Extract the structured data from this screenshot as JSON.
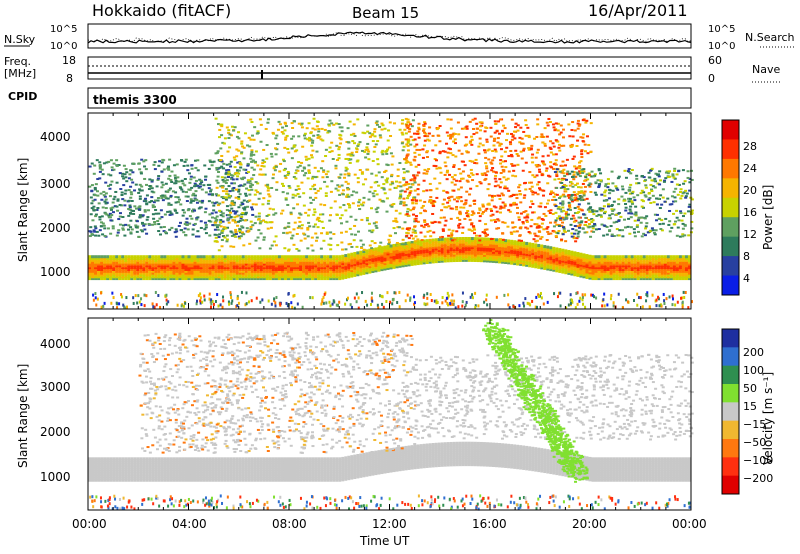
{
  "header": {
    "title": "Hokkaido (fitACF)",
    "beam": "Beam 15",
    "date": "16/Apr/2011"
  },
  "top_panel": {
    "left_label": "N.Sky",
    "right_label": "N.Search",
    "ticks_left": [
      "10^5",
      "10^0"
    ],
    "ticks_right": [
      "10^5",
      "10^0"
    ]
  },
  "freq_panel": {
    "left_label_1": "Freq.",
    "left_label_2": "[MHz]",
    "ticks_left": [
      "18",
      "8"
    ],
    "ticks_right": [
      "60",
      "0"
    ],
    "right_label": "Nave"
  },
  "cpid": {
    "label": "CPID",
    "value": "themis 3300"
  },
  "axes": {
    "ylabel": "Slant Range [km]",
    "xlabel": "Time UT",
    "y_ticks": [
      "4000",
      "3000",
      "2000",
      "1000"
    ],
    "x_ticks": [
      "00:00",
      "04:00",
      "08:00",
      "12:00",
      "16:00",
      "20:00",
      "00:00"
    ]
  },
  "power_colorbar": {
    "label": "Power [dB]",
    "ticks": [
      "28",
      "24",
      "20",
      "16",
      "12",
      "8",
      "4"
    ],
    "colors": [
      "#e00000",
      "#ff3000",
      "#ff7800",
      "#f5b400",
      "#c8d200",
      "#5fa060",
      "#2e7b5c",
      "#2840a0",
      "#0a1ee6"
    ]
  },
  "velocity_colorbar": {
    "label": "Velocity [m s⁻¹]",
    "ticks": [
      "200",
      "100",
      "50",
      "15",
      "−15",
      "−50",
      "−100",
      "−200"
    ],
    "colors": [
      "#1e2fa0",
      "#2f6fd0",
      "#2f8f50",
      "#80e030",
      "#c8c8c8",
      "#f0b830",
      "#ff7810",
      "#ff3010",
      "#e00000"
    ]
  },
  "chart_data": {
    "type": "heatmap",
    "xlabel": "Time UT",
    "ylabel": "Slant Range [km]",
    "xlim": [
      0,
      24
    ],
    "ylim": [
      200,
      4500
    ],
    "panels": [
      {
        "quantity": "Power [dB]",
        "color_range": [
          0,
          32
        ],
        "features": [
          {
            "kind": "band",
            "t": [
              0,
              24
            ],
            "range_km": [
              900,
              1400
            ],
            "power_db": 24
          },
          {
            "kind": "scatter",
            "t": [
              0,
              6
            ],
            "range_km": [
              1800,
              3500
            ],
            "power_db": 6
          },
          {
            "kind": "scatter",
            "t": [
              6,
              12
            ],
            "range_km": [
              1400,
              4400
            ],
            "power_db": 16
          },
          {
            "kind": "arc",
            "t": [
              13,
              20
            ],
            "range_km": [
              1700,
              4400
            ],
            "power_db": 26
          },
          {
            "kind": "scatter",
            "t": [
              19,
              24
            ],
            "range_km": [
              1800,
              3300
            ],
            "power_db": 6
          }
        ]
      },
      {
        "quantity": "Velocity [m s⁻¹]",
        "color_range": [
          -200,
          200
        ],
        "features": [
          {
            "kind": "band",
            "t": [
              0,
              24
            ],
            "range_km": [
              900,
              1400
            ],
            "velocity": 0
          },
          {
            "kind": "scatter",
            "t": [
              2,
              13
            ],
            "range_km": [
              1500,
              4000
            ],
            "velocity": -40
          },
          {
            "kind": "band",
            "t": [
              16,
              19.5
            ],
            "range_km": [
              1000,
              4400
            ],
            "velocity": 30
          },
          {
            "kind": "band",
            "t": [
              13,
              24
            ],
            "range_km": [
              1800,
              3800
            ],
            "velocity": 0
          }
        ]
      }
    ]
  }
}
